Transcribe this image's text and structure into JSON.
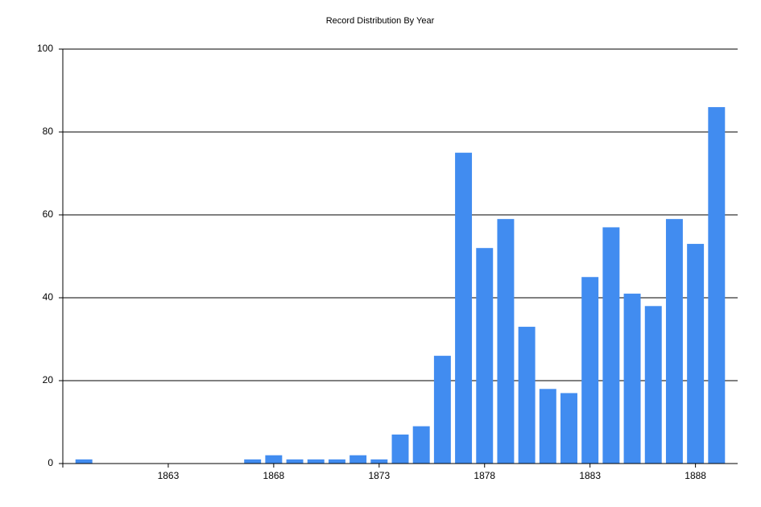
{
  "chart_data": {
    "type": "bar",
    "title": "Record Distribution By Year",
    "x": [
      1859,
      1867,
      1868,
      1869,
      1870,
      1871,
      1872,
      1873,
      1874,
      1875,
      1876,
      1877,
      1878,
      1879,
      1880,
      1881,
      1882,
      1883,
      1884,
      1885,
      1886,
      1887,
      1888,
      1889
    ],
    "values": [
      1,
      1,
      2,
      1,
      1,
      1,
      2,
      1,
      7,
      9,
      26,
      75,
      52,
      59,
      33,
      18,
      17,
      45,
      57,
      41,
      38,
      59,
      53,
      86
    ],
    "color": "#418cf0",
    "xlim": [
      1858,
      1890
    ],
    "xticks": [
      1863,
      1868,
      1873,
      1878,
      1883,
      1888
    ],
    "ylim": [
      0,
      100
    ],
    "yticks": [
      0,
      20,
      40,
      60,
      80,
      100
    ],
    "grid": true
  }
}
